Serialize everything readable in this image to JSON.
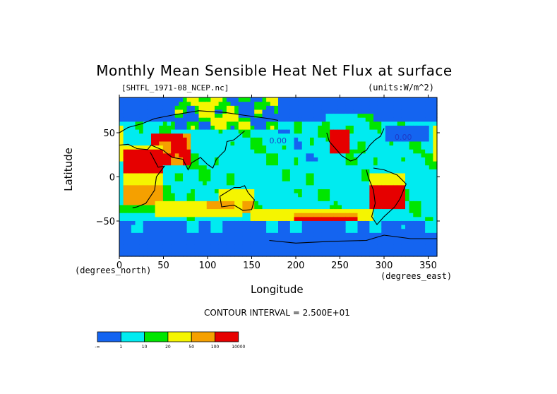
{
  "chart_data": {
    "type": "heatmap",
    "title": "Monthly Mean Sensible Heat Net Flux at surface",
    "subtitle": "[SHTFL_1971-08_NCEP.nc]",
    "units": "(units:W/m^2)",
    "xlabel": "Longitude",
    "ylabel": "Latitude",
    "x_units": "(degrees_east)",
    "y_units": "(degrees_north)",
    "xlim": [
      0,
      360
    ],
    "ylim": [
      -90,
      90
    ],
    "x_ticks": [
      0,
      50,
      100,
      150,
      200,
      250,
      300,
      350
    ],
    "y_ticks": [
      -50,
      0,
      50
    ],
    "contour_interval": "CONTOUR INTERVAL = 2.500E+01",
    "contour_label": "0.00",
    "colorbar": {
      "bins": [
        {
          "label": "-∞",
          "color": "#1464f0"
        },
        {
          "label": "1",
          "color": "#00ebf0"
        },
        {
          "label": "10",
          "color": "#00e600"
        },
        {
          "label": "20",
          "color": "#f5f500"
        },
        {
          "label": "50",
          "color": "#f5a000"
        },
        {
          "label": "100",
          "color": "#e60000"
        },
        {
          "label": "10000",
          "color": ""
        }
      ]
    }
  }
}
